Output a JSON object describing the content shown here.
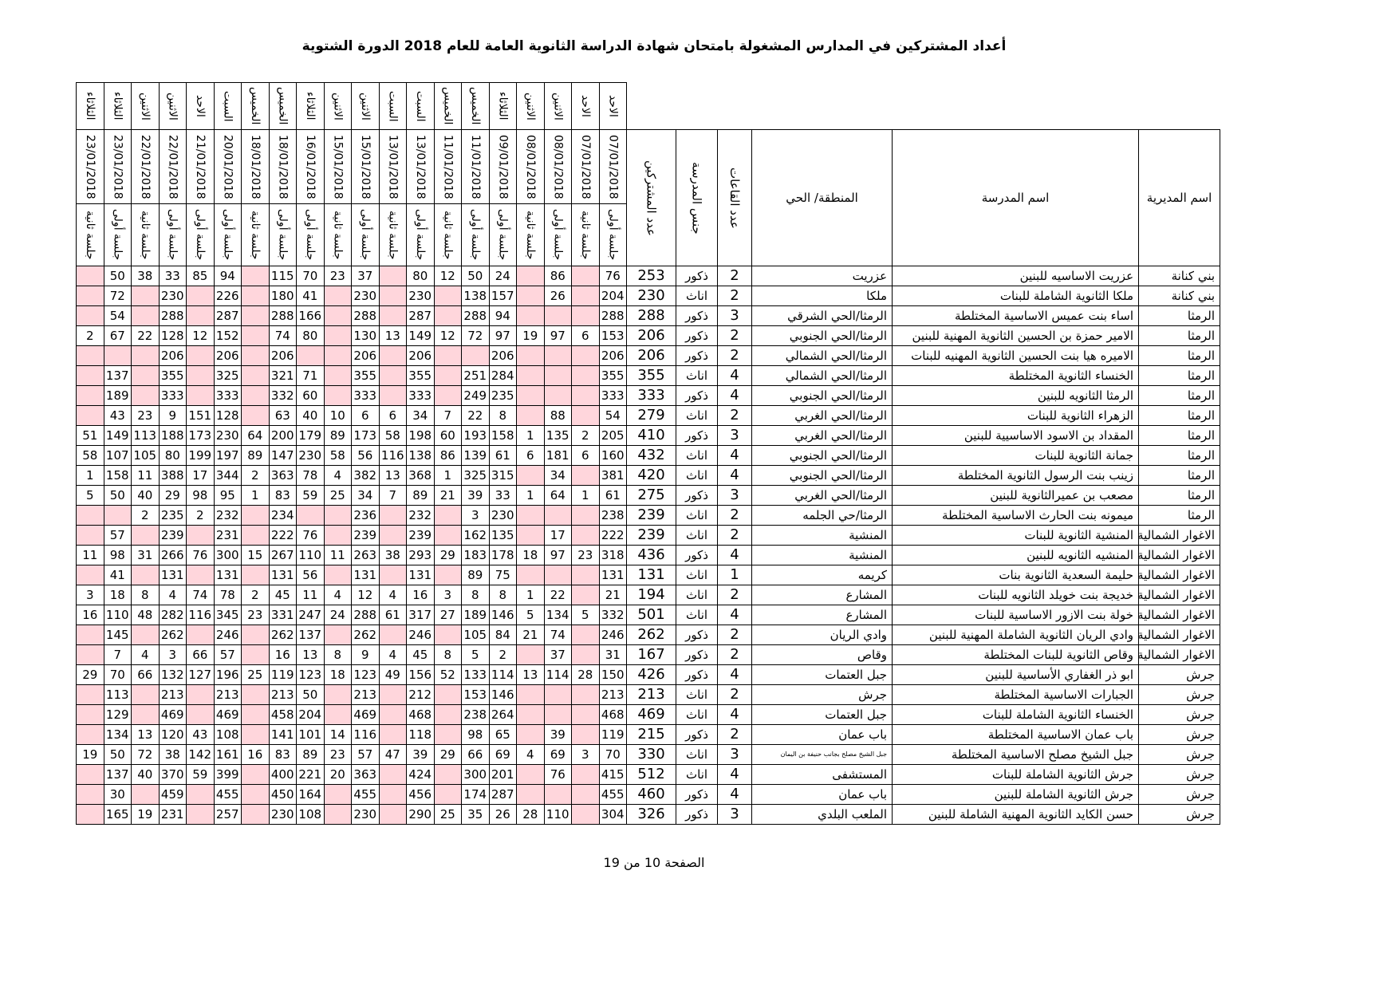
{
  "header": {
    "title": "أعداد المشتركين في المدارس المشغولة بامتحان شهادة الدراسة الثانوية العامة للعام 2018 الدورة الشتوية"
  },
  "table": {
    "columns": [
      "اسم المديرية",
      "اسم المدرسة",
      "المنطقة/ الحي",
      "عدد القاعات",
      "جنس المدرسة",
      "عدد المشتركين"
    ],
    "sessions": [
      {
        "day": "الاحد",
        "date": "07/01/2018",
        "session": "جلسة أولى"
      },
      {
        "day": "الاحد",
        "date": "07/01/2018",
        "session": "جلسة ثانية"
      },
      {
        "day": "الاثنين",
        "date": "08/01/2018",
        "session": "جلسة أولى"
      },
      {
        "day": "الاثنين",
        "date": "08/01/2018",
        "session": "جلسة ثانية"
      },
      {
        "day": "الثلاثاء",
        "date": "09/01/2018",
        "session": "جلسة أولى"
      },
      {
        "day": "الخميس",
        "date": "11/01/2018",
        "session": "جلسة أولى"
      },
      {
        "day": "الخميس",
        "date": "11/01/2018",
        "session": "جلسة ثانية"
      },
      {
        "day": "السبت",
        "date": "13/01/2018",
        "session": "جلسة أولى"
      },
      {
        "day": "السبت",
        "date": "13/01/2018",
        "session": "جلسة ثانية"
      },
      {
        "day": "الاثنين",
        "date": "15/01/2018",
        "session": "جلسة أولى"
      },
      {
        "day": "الاثنين",
        "date": "15/01/2018",
        "session": "جلسة ثانية"
      },
      {
        "day": "الثلاثاء",
        "date": "16/01/2018",
        "session": "جلسة أولى"
      },
      {
        "day": "الخميس",
        "date": "18/01/2018",
        "session": "جلسة أولى"
      },
      {
        "day": "الخميس",
        "date": "18/01/2018",
        "session": "جلسة ثانية"
      },
      {
        "day": "السبت",
        "date": "20/01/2018",
        "session": "جلسة أولى"
      },
      {
        "day": "الاحد",
        "date": "21/01/2018",
        "session": "جلسة أولى"
      },
      {
        "day": "الاثنين",
        "date": "22/01/2018",
        "session": "جلسة أولى"
      },
      {
        "day": "الاثنين",
        "date": "22/01/2018",
        "session": "جلسة ثانية"
      },
      {
        "day": "الثلاثاء",
        "date": "23/01/2018",
        "session": "جلسة أولى"
      },
      {
        "day": "الثلاثاء",
        "date": "23/01/2018",
        "session": "جلسة ثانية"
      }
    ],
    "rows": [
      [
        "بني كنانة",
        "عزريت الاساسيه للبنين",
        "عزريت",
        2,
        "ذكور",
        253,
        76,
        null,
        86,
        null,
        24,
        50,
        12,
        80,
        null,
        37,
        23,
        70,
        115,
        null,
        94,
        85,
        33,
        38,
        50,
        null
      ],
      [
        "بني كنانة",
        "ملكا الثانوية الشاملة للبنات",
        "ملكا",
        2,
        "اناث",
        230,
        204,
        null,
        26,
        null,
        157,
        138,
        null,
        230,
        null,
        230,
        null,
        41,
        180,
        null,
        226,
        null,
        230,
        null,
        72,
        null
      ],
      [
        "الرمثا",
        "اساء بنت عميس الاساسية المختلطة",
        "الرمثا/الحي الشرقي",
        3,
        "ذكور",
        288,
        288,
        null,
        null,
        null,
        94,
        288,
        null,
        287,
        null,
        288,
        null,
        166,
        288,
        null,
        287,
        null,
        288,
        null,
        54,
        null
      ],
      [
        "الرمثا",
        "الامير حمزة بن الحسين الثانوية المهنية للبنين",
        "الرمثا/الحي الجنوبي",
        2,
        "ذكور",
        206,
        153,
        6,
        97,
        19,
        97,
        72,
        12,
        149,
        13,
        130,
        null,
        80,
        74,
        null,
        152,
        12,
        128,
        22,
        67,
        2
      ],
      [
        "الرمثا",
        "الاميره هيا بنت الحسين الثانوية المهنيه للبنات",
        "الرمثا/الحي الشمالي",
        2,
        "ذكور",
        206,
        206,
        null,
        null,
        null,
        206,
        null,
        null,
        206,
        null,
        206,
        null,
        null,
        206,
        null,
        206,
        null,
        206,
        null,
        null,
        null
      ],
      [
        "الرمثا",
        "الخنساء الثانوية المختلطة",
        "الرمثا/الحي الشمالي",
        4,
        "اناث",
        355,
        355,
        null,
        null,
        null,
        284,
        251,
        null,
        355,
        null,
        355,
        null,
        71,
        321,
        null,
        325,
        null,
        355,
        null,
        137,
        null
      ],
      [
        "الرمثا",
        "الرمثا الثانويه للبنين",
        "الرمثا/الحي الجنوبي",
        4,
        "ذكور",
        333,
        333,
        null,
        null,
        null,
        235,
        249,
        null,
        333,
        null,
        333,
        null,
        60,
        332,
        null,
        333,
        null,
        333,
        null,
        189,
        null
      ],
      [
        "الرمثا",
        "الزهراء الثانوية للبنات",
        "الرمثا/الحي الغربي",
        2,
        "اناث",
        279,
        54,
        null,
        88,
        null,
        8,
        22,
        7,
        34,
        6,
        6,
        10,
        40,
        63,
        null,
        128,
        151,
        9,
        23,
        43,
        null
      ],
      [
        "الرمثا",
        "المقداد بن الاسود الاساسيية للبنين",
        "الرمثا/الحي الغربي",
        3,
        "ذكور",
        410,
        205,
        2,
        135,
        1,
        158,
        193,
        60,
        198,
        58,
        173,
        89,
        179,
        200,
        64,
        230,
        173,
        188,
        113,
        149,
        51
      ],
      [
        "الرمثا",
        "جمانة الثانوية للبنات",
        "الرمثا/الحي الجنوبي",
        4,
        "اناث",
        432,
        160,
        6,
        181,
        6,
        61,
        139,
        86,
        138,
        116,
        56,
        58,
        230,
        147,
        89,
        197,
        199,
        80,
        105,
        107,
        58
      ],
      [
        "الرمثا",
        "زينب بنت الرسول الثانوية المختلطة",
        "الرمثا/الحي الجنوبي",
        4,
        "اناث",
        420,
        381,
        null,
        34,
        null,
        315,
        325,
        1,
        368,
        13,
        382,
        4,
        78,
        363,
        2,
        344,
        17,
        388,
        11,
        158,
        1
      ],
      [
        "الرمثا",
        "مصعب بن عميرالثانوية للبنين",
        "الرمثا/الحي الغربي",
        3,
        "ذكور",
        275,
        61,
        1,
        64,
        1,
        33,
        39,
        21,
        89,
        7,
        34,
        25,
        59,
        83,
        1,
        95,
        98,
        29,
        40,
        50,
        5
      ],
      [
        "الرمثا",
        "ميمونه بنت الحارث الاساسية المختلطة",
        "الرمثا/حي الجلمه",
        2,
        "اناث",
        239,
        238,
        null,
        null,
        null,
        230,
        3,
        null,
        232,
        null,
        236,
        null,
        null,
        234,
        null,
        232,
        2,
        235,
        2,
        null,
        null
      ],
      [
        "الاغوار الشمالية",
        "المنشية الثانوية للبنات",
        "المنشية",
        2,
        "اناث",
        239,
        222,
        null,
        17,
        null,
        135,
        162,
        null,
        239,
        null,
        239,
        null,
        76,
        222,
        null,
        231,
        null,
        239,
        null,
        57,
        null
      ],
      [
        "الاغوار الشمالية",
        "المنشيه الثانويه للبنين",
        "المنشية",
        4,
        "ذكور",
        436,
        318,
        23,
        97,
        18,
        178,
        183,
        29,
        293,
        38,
        263,
        11,
        110,
        267,
        15,
        300,
        76,
        266,
        31,
        98,
        11
      ],
      [
        "الاغوار الشمالية",
        "حليمة السعدية الثانوية بنات",
        "كريمه",
        1,
        "اناث",
        131,
        131,
        null,
        null,
        null,
        75,
        89,
        null,
        131,
        null,
        131,
        null,
        56,
        131,
        null,
        131,
        null,
        131,
        null,
        41,
        null
      ],
      [
        "الاغوار الشمالية",
        "خديجة بنت خويلد الثانويه للبنات",
        "المشارع",
        2,
        "اناث",
        194,
        21,
        null,
        22,
        1,
        8,
        8,
        3,
        16,
        4,
        12,
        4,
        11,
        45,
        2,
        78,
        74,
        4,
        8,
        18,
        3
      ],
      [
        "الاغوار الشمالية",
        "خولة بنت الازور الاساسية للبنات",
        "المشارع",
        4,
        "اناث",
        501,
        332,
        5,
        134,
        5,
        146,
        189,
        27,
        317,
        61,
        288,
        24,
        247,
        331,
        23,
        345,
        116,
        282,
        48,
        110,
        16
      ],
      [
        "الاغوار الشمالية",
        "وادي الريان الثانوية الشاملة المهنية للبنين",
        "وادي الريان",
        2,
        "ذكور",
        262,
        246,
        null,
        74,
        21,
        84,
        105,
        null,
        246,
        null,
        262,
        null,
        137,
        262,
        null,
        246,
        null,
        262,
        null,
        145,
        null
      ],
      [
        "الاغوار الشمالية",
        "وقاص الثانوية للبنات المختلطة",
        "وقاص",
        2,
        "ذكور",
        167,
        31,
        null,
        37,
        null,
        2,
        5,
        8,
        45,
        4,
        9,
        8,
        13,
        16,
        null,
        57,
        66,
        3,
        4,
        7,
        null
      ],
      [
        "جرش",
        "ابو ذر الغفاري الأساسية للبنين",
        "جبل العتمات",
        4,
        "ذكور",
        426,
        150,
        28,
        114,
        13,
        114,
        133,
        52,
        156,
        49,
        123,
        18,
        123,
        119,
        25,
        196,
        127,
        132,
        66,
        70,
        29
      ],
      [
        "جرش",
        "الجبارات الاساسية المختلطة",
        "جرش",
        2,
        "اناث",
        213,
        213,
        null,
        null,
        null,
        146,
        153,
        null,
        212,
        null,
        213,
        null,
        50,
        213,
        null,
        213,
        null,
        213,
        null,
        113,
        null
      ],
      [
        "جرش",
        "الخنساء الثانوية الشاملة للبنات",
        "جبل العتمات",
        4,
        "اناث",
        469,
        468,
        null,
        null,
        null,
        264,
        238,
        null,
        468,
        null,
        469,
        null,
        204,
        458,
        null,
        469,
        null,
        469,
        null,
        129,
        null
      ],
      [
        "جرش",
        "باب عمان الاساسية المختلطة",
        "باب عمان",
        2,
        "ذكور",
        215,
        119,
        null,
        39,
        null,
        65,
        98,
        null,
        118,
        null,
        116,
        14,
        101,
        141,
        null,
        108,
        43,
        120,
        13,
        134,
        null
      ],
      [
        "جرش",
        "جبل الشيخ مصلح الاساسية المختلطة",
        "جبل الشيخ مصلح بجانب حنيفة بن اليمان",
        3,
        "اناث",
        330,
        70,
        3,
        69,
        4,
        69,
        66,
        29,
        39,
        47,
        57,
        23,
        89,
        83,
        16,
        161,
        142,
        38,
        72,
        50,
        19
      ],
      [
        "جرش",
        "جرش الثانوية الشاملة للبنات",
        "المستشفى",
        4,
        "اناث",
        512,
        415,
        null,
        76,
        null,
        201,
        300,
        null,
        424,
        null,
        363,
        20,
        221,
        400,
        null,
        399,
        59,
        370,
        40,
        137,
        null
      ],
      [
        "جرش",
        "جرش الثانوية الشاملة للبنين",
        "باب عمان",
        4,
        "ذكور",
        460,
        455,
        null,
        null,
        null,
        287,
        174,
        null,
        456,
        null,
        455,
        null,
        164,
        450,
        null,
        455,
        null,
        459,
        null,
        30,
        null
      ],
      [
        "جرش",
        "حسن الكايد الثانوية المهنية الشاملة للبنين",
        "الملعب البلدي",
        3,
        "ذكور",
        326,
        304,
        null,
        110,
        28,
        26,
        35,
        25,
        290,
        null,
        230,
        null,
        108,
        230,
        null,
        257,
        null,
        231,
        19,
        165,
        null
      ]
    ]
  },
  "footer": {
    "page": "الصفحة 10 من 19"
  }
}
